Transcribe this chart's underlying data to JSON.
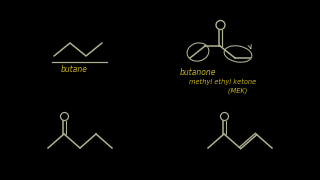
{
  "bg_color": "#000000",
  "line_color": "#b0b090",
  "text_color": "#c8b420",
  "butane_label": "butane",
  "butanone_label": "butanone",
  "mek_line1": "methyl ethyl ketone",
  "mek_line2": "       (MEK)"
}
